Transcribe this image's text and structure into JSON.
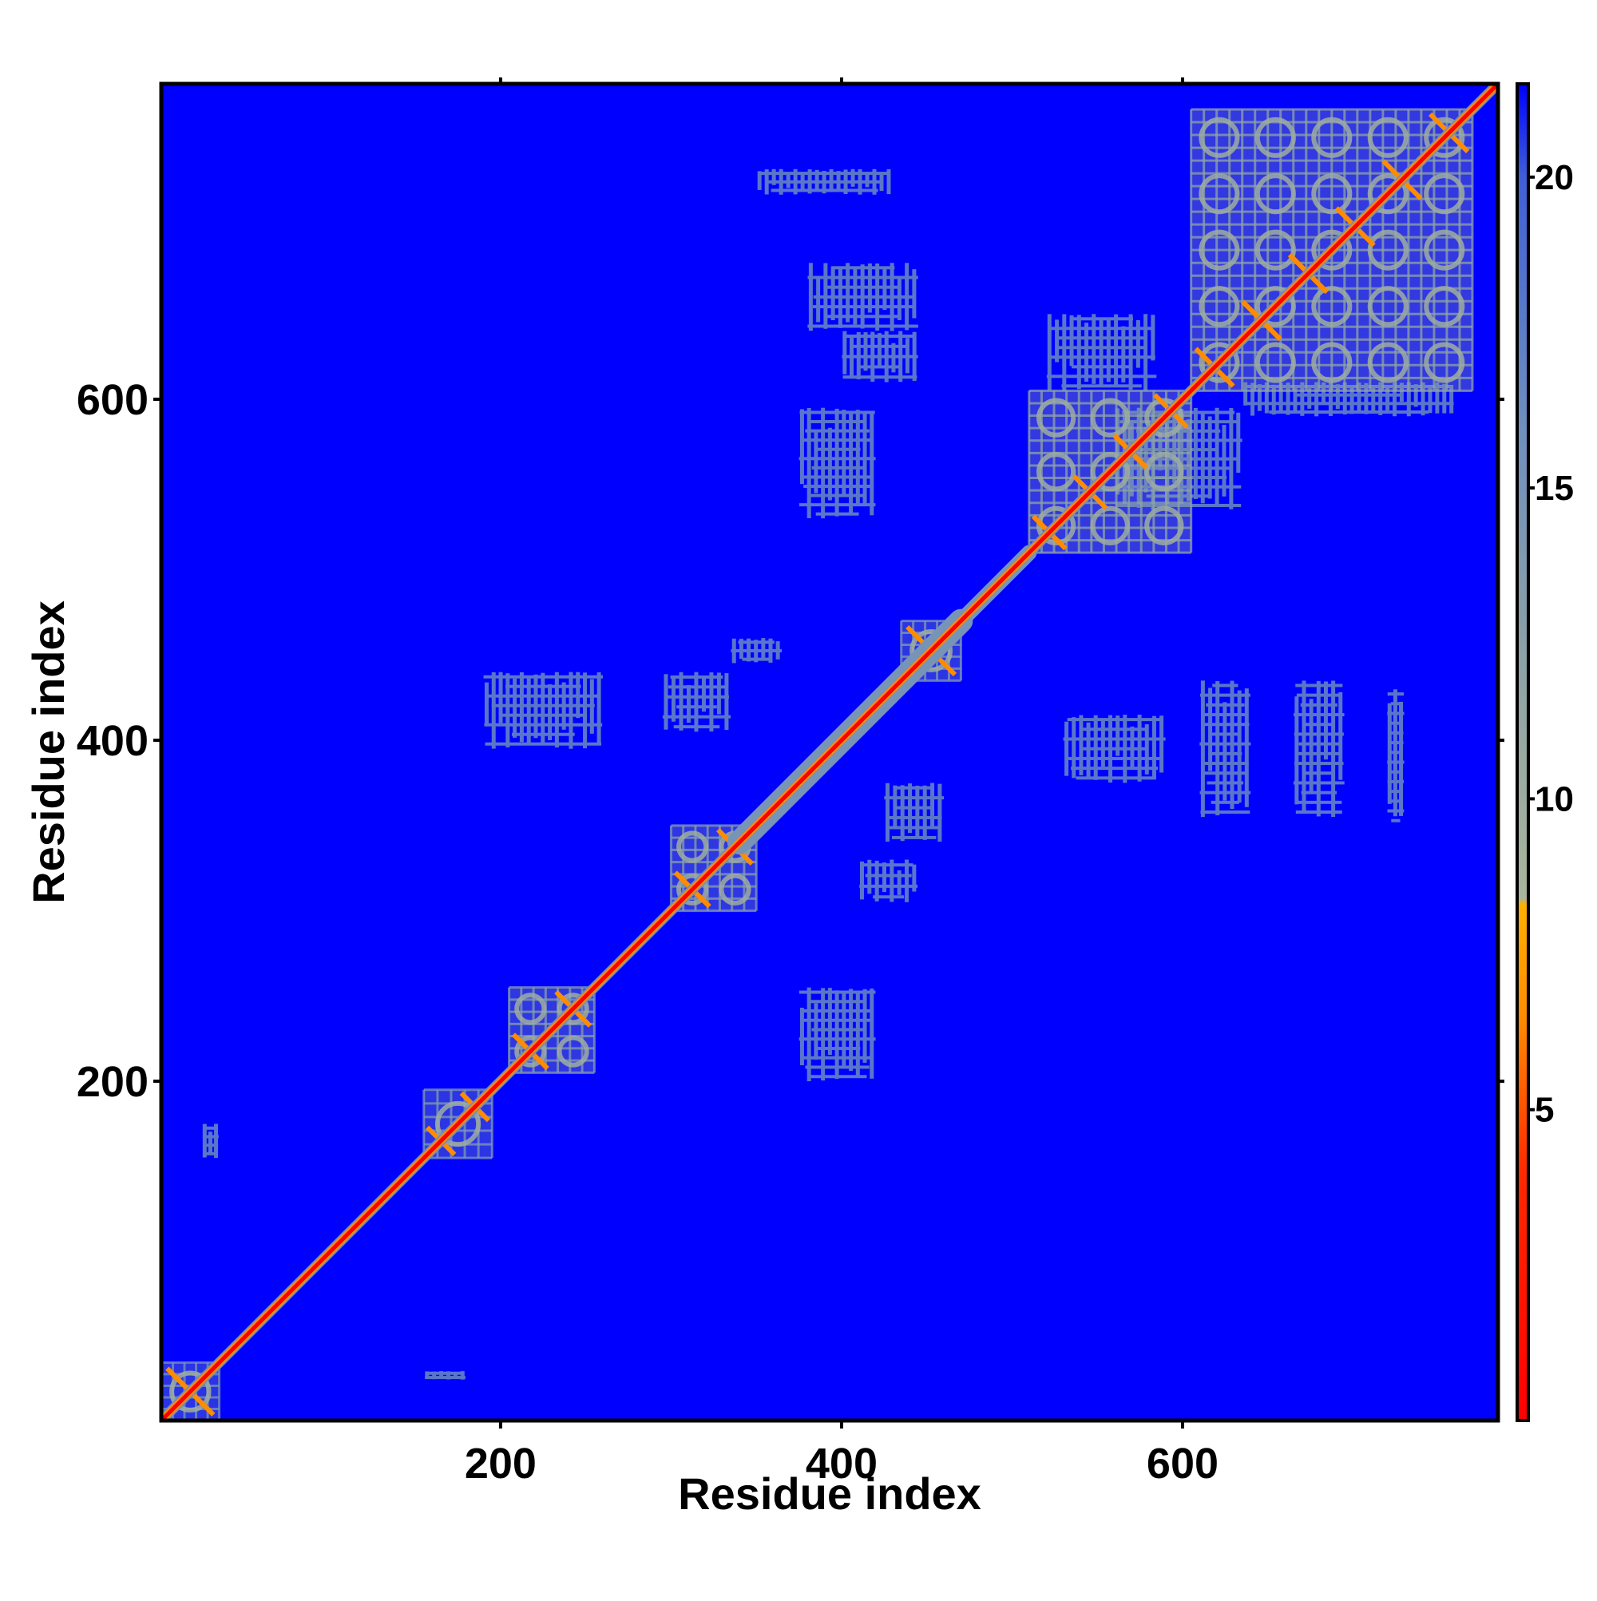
{
  "chart_data": {
    "type": "heatmap",
    "title": "",
    "xlabel": "Residue index",
    "ylabel": "Residue index",
    "xlim": [
      1,
      785
    ],
    "ylim": [
      1,
      785
    ],
    "x_ticks": [
      200,
      400,
      600
    ],
    "y_ticks": [
      200,
      400,
      600
    ],
    "x_tick_labels": [
      "200",
      "400",
      "600"
    ],
    "y_tick_labels": [
      "200",
      "400",
      "600"
    ],
    "colorbar": {
      "ticks": [
        5,
        10,
        15,
        20
      ],
      "tick_labels": [
        "5",
        "10",
        "15",
        "20"
      ],
      "range": [
        0,
        21.5
      ],
      "stops": [
        {
          "value": 0,
          "color": "#ff0000"
        },
        {
          "value": 4,
          "color": "#ff2a00"
        },
        {
          "value": 6.5,
          "color": "#ff8c00"
        },
        {
          "value": 8.3,
          "color": "#ffb000"
        },
        {
          "value": 8.4,
          "color": "#a9b59c"
        },
        {
          "value": 12,
          "color": "#8ea3a6"
        },
        {
          "value": 16,
          "color": "#6f8fbe"
        },
        {
          "value": 20,
          "color": "#3f5fd8"
        },
        {
          "value": 21.5,
          "color": "#0000ff"
        }
      ]
    },
    "background_value": 21,
    "background_color": "#0000ff",
    "diagonal": {
      "value": 1,
      "color": "#ff0000",
      "halo_color": "#6f8fbe",
      "halo_width": 6
    },
    "diagonal_bands": [
      {
        "from": 340,
        "to": 470,
        "halo_width": 14
      },
      {
        "from": 470,
        "to": 510,
        "halo_width": 9
      }
    ],
    "domains": [
      {
        "from": 1,
        "to": 35,
        "value": 15
      },
      {
        "from": 155,
        "to": 195,
        "value": 14
      },
      {
        "from": 205,
        "to": 255,
        "value": 13
      },
      {
        "from": 300,
        "to": 350,
        "value": 13
      },
      {
        "from": 435,
        "to": 470,
        "value": 14
      },
      {
        "from": 510,
        "to": 605,
        "value": 12
      },
      {
        "from": 605,
        "to": 770,
        "value": 12
      }
    ],
    "contact_patches": [
      {
        "x": [
          190,
          260
        ],
        "y": [
          395,
          440
        ],
        "value": 17
      },
      {
        "x": [
          295,
          335
        ],
        "y": [
          405,
          440
        ],
        "value": 17
      },
      {
        "x": [
          335,
          365
        ],
        "y": [
          445,
          460
        ],
        "value": 17
      },
      {
        "x": [
          375,
          420
        ],
        "y": [
          200,
          255
        ],
        "value": 17
      },
      {
        "x": [
          410,
          445
        ],
        "y": [
          305,
          330
        ],
        "value": 17
      },
      {
        "x": [
          425,
          460
        ],
        "y": [
          340,
          375
        ],
        "value": 17
      },
      {
        "x": [
          375,
          420
        ],
        "y": [
          530,
          595
        ],
        "value": 17
      },
      {
        "x": [
          400,
          445
        ],
        "y": [
          610,
          640
        ],
        "value": 17
      },
      {
        "x": [
          380,
          445
        ],
        "y": [
          640,
          680
        ],
        "value": 17
      },
      {
        "x": [
          350,
          430
        ],
        "y": [
          720,
          735
        ],
        "value": 17
      },
      {
        "x": [
          530,
          590
        ],
        "y": [
          375,
          415
        ],
        "value": 17
      },
      {
        "x": [
          610,
          640
        ],
        "y": [
          355,
          435
        ],
        "value": 17
      },
      {
        "x": [
          665,
          695
        ],
        "y": [
          355,
          435
        ],
        "value": 17
      },
      {
        "x": [
          720,
          730
        ],
        "y": [
          350,
          430
        ],
        "value": 17
      },
      {
        "x": [
          520,
          585
        ],
        "y": [
          605,
          650
        ],
        "value": 17
      },
      {
        "x": [
          560,
          635
        ],
        "y": [
          535,
          595
        ],
        "value": 17
      },
      {
        "x": [
          635,
          760
        ],
        "y": [
          590,
          610
        ],
        "value": 17
      },
      {
        "x": [
          25,
          35
        ],
        "y": [
          155,
          175
        ],
        "value": 17
      },
      {
        "x": [
          155,
          180
        ],
        "y": [
          25,
          30
        ],
        "value": 17
      }
    ]
  }
}
